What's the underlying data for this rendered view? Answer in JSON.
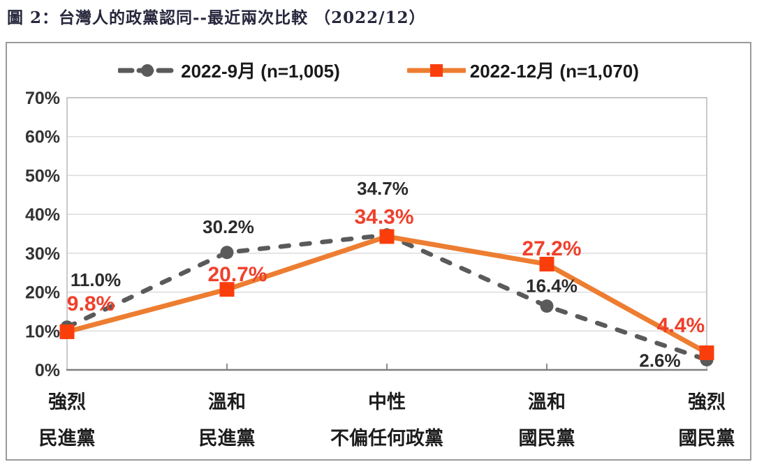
{
  "title": "圖 2：台灣人的政黨認同--最近兩次比較 （2022/12）",
  "chart_data": {
    "type": "line",
    "title": "圖 2：台灣人的政黨認同--最近兩次比較 （2022/12）",
    "categories": [
      [
        "強烈",
        "民進黨"
      ],
      [
        "溫和",
        "民進黨"
      ],
      [
        "中性",
        "不偏任何政黨"
      ],
      [
        "溫和",
        "國民黨"
      ],
      [
        "強烈",
        "國民黨"
      ]
    ],
    "series": [
      {
        "name": "2022-9月 (n=1,005)",
        "values": [
          11.0,
          30.2,
          34.7,
          16.4,
          2.6
        ],
        "line_color": "#5A5A5A",
        "line_style": "dashed",
        "marker": "circle",
        "marker_color": "#5A5A5A",
        "label_color": "#2B2B2B",
        "label_size": 26,
        "label_offsets": [
          [
            41,
            -68
          ],
          [
            2,
            -37
          ],
          [
            -6,
            -67
          ],
          [
            7,
            -29
          ],
          [
            -67,
            1
          ]
        ]
      },
      {
        "name": "2022-12月 (n=1,070)",
        "values": [
          9.8,
          20.7,
          34.3,
          27.2,
          4.4
        ],
        "line_color": "#ED7D31",
        "line_style": "solid",
        "marker": "square",
        "marker_color": "#F93E0C",
        "label_color": "#EF402B",
        "label_size": 30,
        "label_offsets": [
          [
            34,
            -41
          ],
          [
            15,
            -22
          ],
          [
            -4,
            -29
          ],
          [
            7,
            -23
          ],
          [
            -37,
            -40
          ]
        ]
      }
    ],
    "ylim": [
      0,
      70
    ],
    "ytick_step": 10,
    "ytick_labels": [
      "0%",
      "10%",
      "20%",
      "30%",
      "40%",
      "50%",
      "60%",
      "70%"
    ],
    "grid": true,
    "legend_position": "top",
    "style": {
      "gridline": "#DCDCDC",
      "plot_border": "#B8B8B8",
      "axis": "#7F7F7F",
      "tick": "#8C8C8C",
      "ytick_text": "#333333",
      "category_text": "#1C1C1C"
    }
  }
}
